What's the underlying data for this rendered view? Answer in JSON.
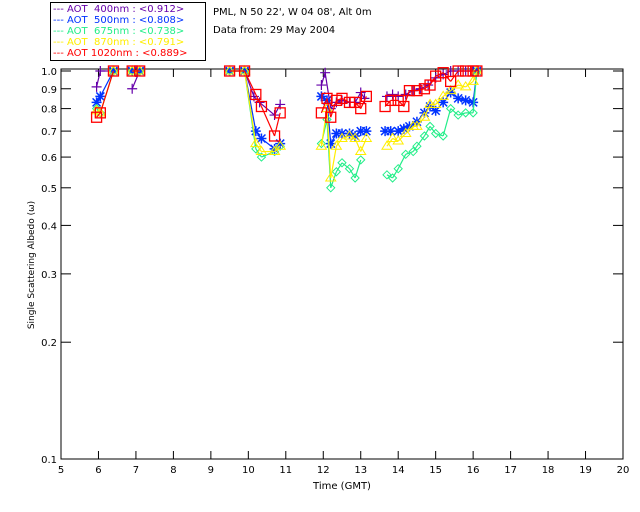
{
  "header": {
    "site": "PML, N 50 22', W 04 08', Alt 0m",
    "date": "Data from: 29 May 2004"
  },
  "chart_data": {
    "type": "scatter",
    "title": "",
    "xlabel": "Time (GMT)",
    "ylabel": "Single Scattering Albedo (ω)",
    "xlim": [
      5,
      20
    ],
    "ylim": [
      0.1,
      1.0
    ],
    "yscale": "log",
    "xticks": [
      "5",
      "6",
      "7",
      "8",
      "9",
      "10",
      "11",
      "12",
      "13",
      "14",
      "15",
      "16",
      "17",
      "18",
      "19",
      "20"
    ],
    "yticks": [
      "0.1",
      "0.2",
      "0.3",
      "0.4",
      "0.5",
      "0.6",
      "0.7",
      "0.8",
      "0.9",
      "1.0"
    ],
    "legend_position": "top-left",
    "series": [
      {
        "name": "AOT  400nm : <0.912>",
        "color": "#6600aa",
        "marker": "plus",
        "points": [
          [
            5.95,
            0.91
          ],
          [
            6.05,
            1.0
          ],
          [
            6.4,
            1.0
          ],
          [
            6.9,
            0.9
          ],
          [
            7.1,
            1.0
          ],
          [
            9.5,
            1.0
          ],
          [
            9.9,
            1.0
          ],
          [
            10.15,
            0.86
          ],
          [
            10.3,
            0.83
          ],
          [
            10.7,
            0.77
          ],
          [
            10.85,
            0.82
          ],
          [
            11.95,
            0.92
          ],
          [
            12.05,
            0.99
          ],
          [
            12.2,
            0.8
          ],
          [
            12.35,
            0.83
          ],
          [
            12.5,
            0.84
          ],
          [
            12.7,
            0.83
          ],
          [
            12.85,
            0.83
          ],
          [
            13.0,
            0.88
          ],
          [
            13.1,
            0.85
          ],
          [
            13.7,
            0.86
          ],
          [
            13.85,
            0.87
          ],
          [
            14.0,
            0.86
          ],
          [
            14.2,
            0.87
          ],
          [
            14.4,
            0.89
          ],
          [
            14.6,
            0.9
          ],
          [
            14.8,
            0.92
          ],
          [
            15.0,
            0.96
          ],
          [
            15.2,
            0.98
          ],
          [
            15.4,
            1.0
          ],
          [
            15.6,
            1.0
          ],
          [
            15.8,
            1.0
          ],
          [
            16.0,
            1.0
          ],
          [
            16.1,
            1.0
          ]
        ]
      },
      {
        "name": "AOT  500nm : <0.808>",
        "color": "#0033ff",
        "marker": "star",
        "points": [
          [
            5.95,
            0.83
          ],
          [
            6.05,
            0.86
          ],
          [
            6.4,
            1.0
          ],
          [
            6.9,
            1.0
          ],
          [
            7.1,
            1.0
          ],
          [
            9.5,
            1.0
          ],
          [
            9.9,
            1.0
          ],
          [
            10.2,
            0.7
          ],
          [
            10.35,
            0.67
          ],
          [
            10.7,
            0.63
          ],
          [
            10.85,
            0.65
          ],
          [
            11.95,
            0.86
          ],
          [
            12.1,
            0.84
          ],
          [
            12.2,
            0.65
          ],
          [
            12.35,
            0.69
          ],
          [
            12.5,
            0.69
          ],
          [
            12.7,
            0.69
          ],
          [
            12.85,
            0.68
          ],
          [
            13.0,
            0.7
          ],
          [
            13.15,
            0.7
          ],
          [
            13.65,
            0.7
          ],
          [
            13.8,
            0.7
          ],
          [
            14.0,
            0.7
          ],
          [
            14.15,
            0.71
          ],
          [
            14.3,
            0.72
          ],
          [
            14.5,
            0.74
          ],
          [
            14.7,
            0.78
          ],
          [
            14.85,
            0.81
          ],
          [
            15.0,
            0.79
          ],
          [
            15.2,
            0.83
          ],
          [
            15.4,
            0.88
          ],
          [
            15.6,
            0.85
          ],
          [
            15.8,
            0.84
          ],
          [
            16.0,
            0.83
          ],
          [
            16.1,
            1.0
          ]
        ]
      },
      {
        "name": "AOT  675nm : <0.738>",
        "color": "#22ee88",
        "marker": "diamond",
        "points": [
          [
            5.95,
            0.8
          ],
          [
            6.05,
            0.78
          ],
          [
            6.4,
            1.0
          ],
          [
            6.9,
            1.0
          ],
          [
            7.1,
            1.0
          ],
          [
            9.5,
            1.0
          ],
          [
            9.9,
            1.0
          ],
          [
            10.2,
            0.63
          ],
          [
            10.35,
            0.6
          ],
          [
            10.7,
            0.62
          ],
          [
            10.85,
            0.64
          ],
          [
            11.95,
            0.65
          ],
          [
            12.1,
            0.75
          ],
          [
            12.2,
            0.5
          ],
          [
            12.35,
            0.55
          ],
          [
            12.5,
            0.58
          ],
          [
            12.7,
            0.56
          ],
          [
            12.85,
            0.53
          ],
          [
            13.0,
            0.59
          ],
          [
            13.7,
            0.54
          ],
          [
            13.85,
            0.53
          ],
          [
            14.0,
            0.56
          ],
          [
            14.2,
            0.61
          ],
          [
            14.4,
            0.62
          ],
          [
            14.5,
            0.64
          ],
          [
            14.7,
            0.68
          ],
          [
            14.85,
            0.72
          ],
          [
            15.0,
            0.69
          ],
          [
            15.2,
            0.68
          ],
          [
            15.4,
            0.8
          ],
          [
            15.6,
            0.77
          ],
          [
            15.8,
            0.78
          ],
          [
            16.0,
            0.78
          ],
          [
            16.1,
            1.0
          ]
        ]
      },
      {
        "name": "AOT  870nm : <0.791>",
        "color": "#ffee00",
        "marker": "triangle",
        "points": [
          [
            5.95,
            0.79
          ],
          [
            6.05,
            0.78
          ],
          [
            6.4,
            1.0
          ],
          [
            6.9,
            1.0
          ],
          [
            7.1,
            1.0
          ],
          [
            9.5,
            1.0
          ],
          [
            9.9,
            1.0
          ],
          [
            10.2,
            0.65
          ],
          [
            10.35,
            0.62
          ],
          [
            10.7,
            0.62
          ],
          [
            10.85,
            0.64
          ],
          [
            11.95,
            0.64
          ],
          [
            12.1,
            0.8
          ],
          [
            12.2,
            0.53
          ],
          [
            12.35,
            0.64
          ],
          [
            12.5,
            0.67
          ],
          [
            12.7,
            0.68
          ],
          [
            12.85,
            0.67
          ],
          [
            13.0,
            0.62
          ],
          [
            13.15,
            0.67
          ],
          [
            13.7,
            0.64
          ],
          [
            13.85,
            0.67
          ],
          [
            14.0,
            0.66
          ],
          [
            14.2,
            0.69
          ],
          [
            14.4,
            0.72
          ],
          [
            14.5,
            0.72
          ],
          [
            14.7,
            0.76
          ],
          [
            14.85,
            0.82
          ],
          [
            15.0,
            0.82
          ],
          [
            15.2,
            0.86
          ],
          [
            15.4,
            0.89
          ],
          [
            15.6,
            0.92
          ],
          [
            15.8,
            0.91
          ],
          [
            16.0,
            0.94
          ],
          [
            16.1,
            1.0
          ]
        ]
      },
      {
        "name": "AOT 1020nm : <0.889>",
        "color": "#ff0000",
        "marker": "square",
        "points": [
          [
            5.95,
            0.76
          ],
          [
            6.05,
            0.78
          ],
          [
            6.4,
            1.0
          ],
          [
            6.9,
            1.0
          ],
          [
            7.1,
            1.0
          ],
          [
            9.5,
            1.0
          ],
          [
            9.9,
            1.0
          ],
          [
            10.2,
            0.87
          ],
          [
            10.35,
            0.81
          ],
          [
            10.7,
            0.68
          ],
          [
            10.85,
            0.78
          ],
          [
            11.95,
            0.78
          ],
          [
            12.1,
            0.85
          ],
          [
            12.2,
            0.76
          ],
          [
            12.35,
            0.84
          ],
          [
            12.5,
            0.85
          ],
          [
            12.7,
            0.83
          ],
          [
            12.85,
            0.83
          ],
          [
            13.0,
            0.8
          ],
          [
            13.15,
            0.86
          ],
          [
            13.65,
            0.81
          ],
          [
            13.8,
            0.84
          ],
          [
            14.0,
            0.84
          ],
          [
            14.15,
            0.81
          ],
          [
            14.3,
            0.89
          ],
          [
            14.5,
            0.89
          ],
          [
            14.7,
            0.9
          ],
          [
            14.85,
            0.92
          ],
          [
            15.0,
            0.97
          ],
          [
            15.2,
            0.99
          ],
          [
            15.4,
            0.94
          ],
          [
            15.6,
            1.0
          ],
          [
            15.8,
            1.0
          ],
          [
            16.0,
            1.0
          ],
          [
            16.1,
            1.0
          ]
        ]
      }
    ]
  }
}
